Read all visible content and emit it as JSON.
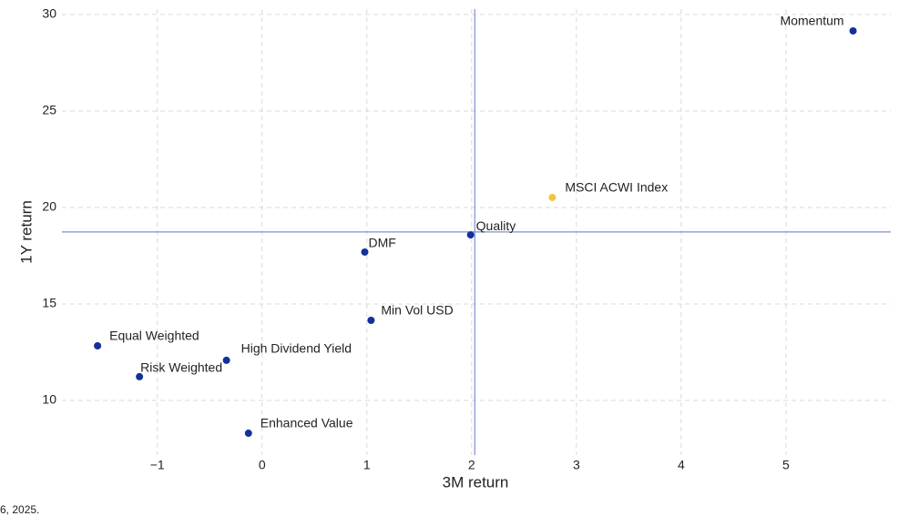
{
  "chart_data": {
    "type": "scatter",
    "xlabel": "3M return",
    "ylabel": "1Y return",
    "labels": [
      "Momentum",
      "MSCI ACWI Index",
      "Quality",
      "DMF",
      "Min Vol USD",
      "Equal Weighted",
      "Risk Weighted",
      "High Dividend Yield",
      "Enhanced Value"
    ],
    "x": [
      5.64,
      2.77,
      1.99,
      0.98,
      1.04,
      -1.57,
      -1.17,
      -0.34,
      -0.13
    ],
    "y": [
      29.15,
      20.52,
      18.58,
      17.69,
      14.15,
      12.83,
      11.23,
      12.08,
      8.3
    ],
    "colors": [
      "#13309c",
      "#f5c342",
      "#13309c",
      "#13309c",
      "#13309c",
      "#13309c",
      "#13309c",
      "#13309c",
      "#13309c"
    ],
    "reference_lines": {
      "x": 2.03,
      "y": 18.73,
      "color": "#7f90d0"
    },
    "xlim": [
      -1.91,
      6.0
    ],
    "ylim": [
      7.17,
      30.28
    ],
    "xticks": [
      {
        "value": -1,
        "label": "−1"
      },
      0,
      1,
      2,
      3,
      4,
      5
    ],
    "yticks": [
      10,
      15,
      20,
      25,
      30
    ],
    "grid": true
  },
  "footnote": "6, 2025."
}
